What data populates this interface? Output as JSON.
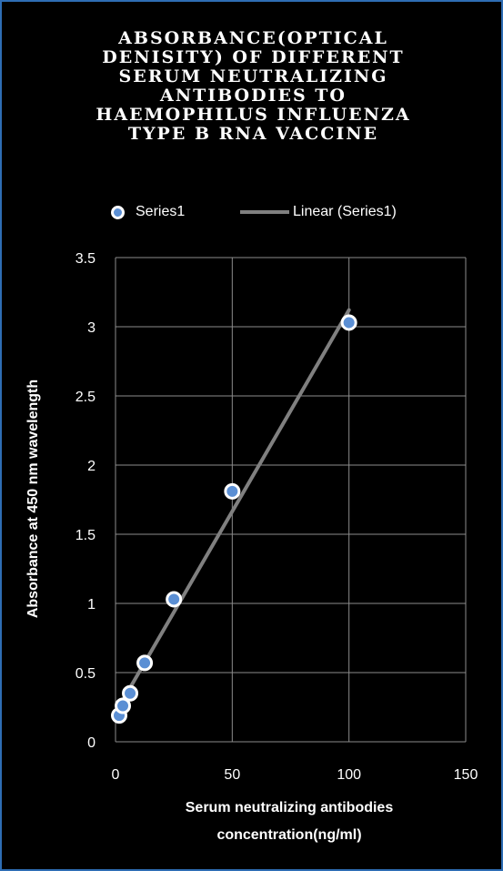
{
  "chart_data": {
    "type": "scatter",
    "title_lines": [
      "ABSORBANCE(OPTICAL",
      "DENISITY) OF DIFFERENT",
      "SERUM NEUTRALIZING",
      "ANTIBODIES TO",
      "HAEMOPHILUS INFLUENZA",
      "TYPE B RNA VACCINE"
    ],
    "xlabel_lines": [
      "Serum neutralizing antibodies",
      "concentration(ng/ml)"
    ],
    "ylabel": "Absorbance at 450 nm wavelength",
    "xlim": [
      0,
      150
    ],
    "ylim": [
      0,
      3.5
    ],
    "x_ticks": [
      "0",
      "50",
      "100",
      "150"
    ],
    "y_ticks": [
      "0",
      "0.5",
      "1",
      "1.5",
      "2",
      "2.5",
      "3",
      "3.5"
    ],
    "grid": true,
    "legend_position": "top",
    "series": [
      {
        "name": "Series1",
        "x": [
          1.56,
          3.125,
          6.25,
          12.5,
          25,
          50,
          100
        ],
        "y": [
          0.19,
          0.26,
          0.35,
          0.57,
          1.03,
          1.81,
          3.03
        ]
      }
    ],
    "trendline": {
      "name": "Linear (Series1)",
      "type": "linear",
      "x_range": [
        1.56,
        100
      ]
    },
    "colors": {
      "background": "#000000",
      "border": "#2e6db4",
      "marker_fill": "#5b8fd4",
      "marker_edge": "#ffffff",
      "trendline": "#808080",
      "grid": "#8c8c8c",
      "text": "#ffffff"
    }
  }
}
